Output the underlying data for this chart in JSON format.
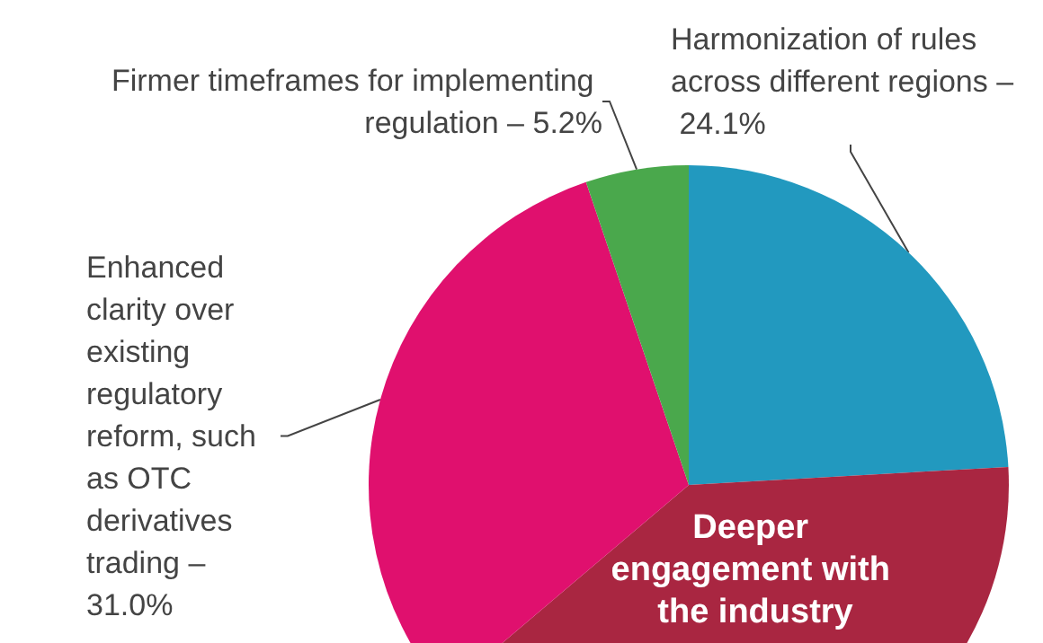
{
  "chart_data": {
    "type": "pie",
    "categories": [
      "Harmonization of rules across different regions – 24.1%",
      "Deeper engagement with the industry",
      "Enhanced clarity over existing regulatory reform, such as OTC derivatives trading – 31.0%",
      "Firmer timeframes for implementing regulation – 5.2%"
    ],
    "values": [
      24.1,
      39.7,
      31.0,
      5.2
    ],
    "colors": [
      "#2299bf",
      "#a92641",
      "#e0106e",
      "#4aa84c"
    ]
  }
}
